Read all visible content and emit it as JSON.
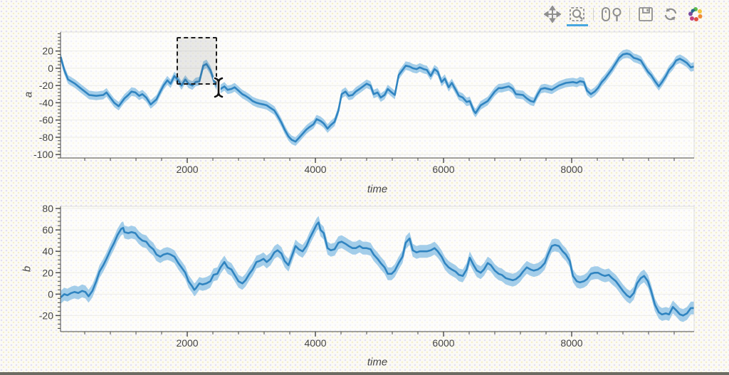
{
  "toolbar": {
    "tools": [
      {
        "name": "pan",
        "icon": "pan-move-icon",
        "active": false
      },
      {
        "name": "box-zoom",
        "icon": "box-zoom-icon",
        "active": true
      },
      {
        "name": "wheel-zoom",
        "icon": "wheel-zoom-icon",
        "active": false
      },
      {
        "name": "save",
        "icon": "save-icon",
        "active": false
      },
      {
        "name": "reset",
        "icon": "reset-icon",
        "active": false
      },
      {
        "name": "bokeh-logo",
        "icon": "bokeh-logo-icon",
        "active": false
      }
    ],
    "active_underline_color": "#47a7e0",
    "icon_color": "#8e8e8e"
  },
  "chart_data": [
    {
      "type": "line",
      "title": "",
      "xlabel": "time",
      "ylabel": "a",
      "x_ticks": [
        2000,
        4000,
        6000,
        8000
      ],
      "y_ticks": [
        20,
        0,
        -20,
        -40,
        -60,
        -80,
        -100
      ],
      "x_minor_step": 400,
      "y_minor_step": 4,
      "xlim": [
        22,
        9911
      ],
      "ylim": [
        -104,
        42
      ],
      "grid": false,
      "legend": "none",
      "line_color": "#3084c0",
      "band_color": "#a3cde9",
      "band_halfwidth": 5,
      "selection_box": {
        "t_start": 1833,
        "t_end": 2467,
        "v_start": -19,
        "v_end": 36
      },
      "points": [
        [
          25,
          13
        ],
        [
          80,
          -2
        ],
        [
          140,
          -13
        ],
        [
          250,
          -18
        ],
        [
          350,
          -24
        ],
        [
          470,
          -31
        ],
        [
          580,
          -32
        ],
        [
          690,
          -31
        ],
        [
          740,
          -28
        ],
        [
          800,
          -34
        ],
        [
          860,
          -40
        ],
        [
          930,
          -44
        ],
        [
          1020,
          -35
        ],
        [
          1080,
          -31
        ],
        [
          1130,
          -27
        ],
        [
          1190,
          -28
        ],
        [
          1250,
          -32
        ],
        [
          1300,
          -30
        ],
        [
          1360,
          -34
        ],
        [
          1430,
          -42
        ],
        [
          1520,
          -36
        ],
        [
          1580,
          -27
        ],
        [
          1630,
          -20
        ],
        [
          1690,
          -14
        ],
        [
          1740,
          -18
        ],
        [
          1800,
          -9
        ],
        [
          1860,
          -14
        ],
        [
          1910,
          -20
        ],
        [
          1970,
          -13
        ],
        [
          2020,
          -18
        ],
        [
          2080,
          -20
        ],
        [
          2130,
          -16
        ],
        [
          2190,
          -15
        ],
        [
          2250,
          3
        ],
        [
          2300,
          5
        ],
        [
          2360,
          -2
        ],
        [
          2420,
          -15
        ],
        [
          2470,
          -22
        ],
        [
          2520,
          -24
        ],
        [
          2580,
          -21
        ],
        [
          2630,
          -25
        ],
        [
          2690,
          -24
        ],
        [
          2740,
          -22
        ],
        [
          2800,
          -26
        ],
        [
          2860,
          -30
        ],
        [
          2910,
          -32
        ],
        [
          2970,
          -35
        ],
        [
          3020,
          -38
        ],
        [
          3080,
          -40
        ],
        [
          3130,
          -41
        ],
        [
          3190,
          -42
        ],
        [
          3240,
          -43
        ],
        [
          3300,
          -46
        ],
        [
          3360,
          -49
        ],
        [
          3410,
          -55
        ],
        [
          3470,
          -63
        ],
        [
          3520,
          -71
        ],
        [
          3580,
          -79
        ],
        [
          3630,
          -83
        ],
        [
          3690,
          -85
        ],
        [
          3740,
          -81
        ],
        [
          3800,
          -76
        ],
        [
          3860,
          -71
        ],
        [
          3910,
          -68
        ],
        [
          3970,
          -65
        ],
        [
          4020,
          -59
        ],
        [
          4080,
          -61
        ],
        [
          4130,
          -64
        ],
        [
          4190,
          -70
        ],
        [
          4240,
          -66
        ],
        [
          4300,
          -62
        ],
        [
          4360,
          -49
        ],
        [
          4410,
          -30
        ],
        [
          4470,
          -27
        ],
        [
          4520,
          -32
        ],
        [
          4580,
          -31
        ],
        [
          4630,
          -27
        ],
        [
          4690,
          -24
        ],
        [
          4800,
          -18
        ],
        [
          4860,
          -20
        ],
        [
          4910,
          -30
        ],
        [
          4970,
          -28
        ],
        [
          5020,
          -34
        ],
        [
          5080,
          -31
        ],
        [
          5130,
          -24
        ],
        [
          5190,
          -28
        ],
        [
          5240,
          -31
        ],
        [
          5300,
          -8
        ],
        [
          5360,
          -2
        ],
        [
          5410,
          3
        ],
        [
          5470,
          2
        ],
        [
          5520,
          0
        ],
        [
          5580,
          -1
        ],
        [
          5630,
          1
        ],
        [
          5690,
          -1
        ],
        [
          5740,
          -2
        ],
        [
          5800,
          -9
        ],
        [
          5860,
          -1
        ],
        [
          5910,
          -4
        ],
        [
          5970,
          -16
        ],
        [
          6020,
          -12
        ],
        [
          6080,
          -22
        ],
        [
          6130,
          -17
        ],
        [
          6190,
          -25
        ],
        [
          6240,
          -32
        ],
        [
          6300,
          -34
        ],
        [
          6360,
          -39
        ],
        [
          6410,
          -38
        ],
        [
          6470,
          -49
        ],
        [
          6500,
          -52
        ],
        [
          6580,
          -43
        ],
        [
          6690,
          -38
        ],
        [
          6800,
          -27
        ],
        [
          6860,
          -23
        ],
        [
          6910,
          -23
        ],
        [
          7020,
          -21
        ],
        [
          7080,
          -24
        ],
        [
          7130,
          -30
        ],
        [
          7240,
          -31
        ],
        [
          7300,
          -35
        ],
        [
          7360,
          -38
        ],
        [
          7410,
          -39
        ],
        [
          7470,
          -30
        ],
        [
          7520,
          -24
        ],
        [
          7580,
          -23
        ],
        [
          7690,
          -25
        ],
        [
          7800,
          -20
        ],
        [
          7910,
          -17
        ],
        [
          8020,
          -16
        ],
        [
          8080,
          -17
        ],
        [
          8130,
          -15
        ],
        [
          8190,
          -16
        ],
        [
          8240,
          -26
        ],
        [
          8300,
          -30
        ],
        [
          8360,
          -27
        ],
        [
          8410,
          -23
        ],
        [
          8470,
          -16
        ],
        [
          8520,
          -12
        ],
        [
          8580,
          -6
        ],
        [
          8630,
          -1
        ],
        [
          8690,
          6
        ],
        [
          8740,
          12
        ],
        [
          8800,
          16
        ],
        [
          8860,
          17
        ],
        [
          8910,
          16
        ],
        [
          8970,
          12
        ],
        [
          9020,
          11
        ],
        [
          9080,
          9
        ],
        [
          9130,
          3
        ],
        [
          9190,
          -4
        ],
        [
          9240,
          -8
        ],
        [
          9300,
          -15
        ],
        [
          9360,
          -21
        ],
        [
          9410,
          -16
        ],
        [
          9470,
          -9
        ],
        [
          9520,
          -2
        ],
        [
          9580,
          3
        ],
        [
          9630,
          9
        ],
        [
          9690,
          11
        ],
        [
          9740,
          9
        ],
        [
          9800,
          6
        ],
        [
          9860,
          1
        ],
        [
          9908,
          2
        ]
      ]
    },
    {
      "type": "line",
      "title": "",
      "xlabel": "time",
      "ylabel": "b",
      "x_ticks": [
        2000,
        4000,
        6000,
        8000
      ],
      "y_ticks": [
        80,
        60,
        40,
        20,
        0,
        -20
      ],
      "x_minor_step": 400,
      "y_minor_step": 4,
      "xlim": [
        22,
        9911
      ],
      "ylim": [
        -35,
        82
      ],
      "grid": false,
      "legend": "none",
      "line_color": "#3084c0",
      "band_color": "#a3cde9",
      "band_halfwidth": 6,
      "points": [
        [
          25,
          -3
        ],
        [
          80,
          0
        ],
        [
          130,
          -1
        ],
        [
          190,
          1
        ],
        [
          240,
          2
        ],
        [
          300,
          1
        ],
        [
          360,
          3
        ],
        [
          410,
          2
        ],
        [
          460,
          -2
        ],
        [
          520,
          3
        ],
        [
          580,
          12
        ],
        [
          630,
          21
        ],
        [
          690,
          27
        ],
        [
          740,
          33
        ],
        [
          800,
          41
        ],
        [
          860,
          48
        ],
        [
          910,
          55
        ],
        [
          970,
          61
        ],
        [
          1000,
          62
        ],
        [
          1020,
          58
        ],
        [
          1080,
          57
        ],
        [
          1130,
          58
        ],
        [
          1190,
          57
        ],
        [
          1240,
          53
        ],
        [
          1300,
          50
        ],
        [
          1360,
          49
        ],
        [
          1410,
          45
        ],
        [
          1470,
          42
        ],
        [
          1520,
          37
        ],
        [
          1580,
          35
        ],
        [
          1630,
          37
        ],
        [
          1690,
          38
        ],
        [
          1740,
          37
        ],
        [
          1800,
          35
        ],
        [
          1860,
          29
        ],
        [
          1910,
          25
        ],
        [
          1970,
          20
        ],
        [
          2020,
          12
        ],
        [
          2080,
          7
        ],
        [
          2110,
          4
        ],
        [
          2130,
          5
        ],
        [
          2190,
          10
        ],
        [
          2240,
          9
        ],
        [
          2300,
          10
        ],
        [
          2360,
          12
        ],
        [
          2410,
          18
        ],
        [
          2470,
          19
        ],
        [
          2520,
          25
        ],
        [
          2580,
          30
        ],
        [
          2630,
          25
        ],
        [
          2690,
          23
        ],
        [
          2740,
          18
        ],
        [
          2800,
          12
        ],
        [
          2860,
          10
        ],
        [
          2910,
          13
        ],
        [
          2970,
          19
        ],
        [
          3020,
          23
        ],
        [
          3080,
          30
        ],
        [
          3130,
          31
        ],
        [
          3190,
          33
        ],
        [
          3240,
          30
        ],
        [
          3300,
          33
        ],
        [
          3360,
          39
        ],
        [
          3410,
          41
        ],
        [
          3470,
          38
        ],
        [
          3520,
          31
        ],
        [
          3580,
          27
        ],
        [
          3630,
          35
        ],
        [
          3690,
          45
        ],
        [
          3740,
          42
        ],
        [
          3800,
          40
        ],
        [
          3860,
          45
        ],
        [
          3910,
          52
        ],
        [
          3970,
          59
        ],
        [
          4020,
          65
        ],
        [
          4050,
          67
        ],
        [
          4080,
          60
        ],
        [
          4130,
          57
        ],
        [
          4190,
          43
        ],
        [
          4240,
          41
        ],
        [
          4300,
          42
        ],
        [
          4360,
          48
        ],
        [
          4410,
          49
        ],
        [
          4470,
          47
        ],
        [
          4520,
          45
        ],
        [
          4580,
          43
        ],
        [
          4630,
          43
        ],
        [
          4690,
          45
        ],
        [
          4740,
          43
        ],
        [
          4800,
          43
        ],
        [
          4860,
          42
        ],
        [
          4910,
          37
        ],
        [
          4970,
          33
        ],
        [
          5020,
          29
        ],
        [
          5080,
          25
        ],
        [
          5130,
          19
        ],
        [
          5190,
          19
        ],
        [
          5240,
          22
        ],
        [
          5300,
          29
        ],
        [
          5360,
          35
        ],
        [
          5410,
          48
        ],
        [
          5470,
          52
        ],
        [
          5520,
          41
        ],
        [
          5580,
          39
        ],
        [
          5630,
          40
        ],
        [
          5690,
          40
        ],
        [
          5740,
          40
        ],
        [
          5800,
          41
        ],
        [
          5860,
          43
        ],
        [
          5910,
          40
        ],
        [
          5970,
          35
        ],
        [
          6020,
          29
        ],
        [
          6080,
          25
        ],
        [
          6130,
          23
        ],
        [
          6190,
          21
        ],
        [
          6240,
          18
        ],
        [
          6300,
          17
        ],
        [
          6360,
          23
        ],
        [
          6410,
          34
        ],
        [
          6470,
          27
        ],
        [
          6520,
          22
        ],
        [
          6580,
          20
        ],
        [
          6630,
          23
        ],
        [
          6690,
          29
        ],
        [
          6740,
          27
        ],
        [
          6800,
          22
        ],
        [
          6860,
          19
        ],
        [
          6910,
          18
        ],
        [
          6970,
          15
        ],
        [
          7020,
          14
        ],
        [
          7080,
          13
        ],
        [
          7130,
          14
        ],
        [
          7190,
          17
        ],
        [
          7240,
          21
        ],
        [
          7300,
          25
        ],
        [
          7360,
          23
        ],
        [
          7410,
          22
        ],
        [
          7470,
          23
        ],
        [
          7520,
          25
        ],
        [
          7580,
          29
        ],
        [
          7630,
          37
        ],
        [
          7690,
          45
        ],
        [
          7740,
          46
        ],
        [
          7800,
          45
        ],
        [
          7860,
          40
        ],
        [
          7910,
          37
        ],
        [
          7970,
          31
        ],
        [
          8020,
          17
        ],
        [
          8080,
          12
        ],
        [
          8130,
          11
        ],
        [
          8190,
          12
        ],
        [
          8240,
          14
        ],
        [
          8300,
          19
        ],
        [
          8360,
          20
        ],
        [
          8410,
          20
        ],
        [
          8470,
          18
        ],
        [
          8520,
          17
        ],
        [
          8580,
          18
        ],
        [
          8630,
          15
        ],
        [
          8690,
          12
        ],
        [
          8740,
          8
        ],
        [
          8800,
          3
        ],
        [
          8860,
          -1
        ],
        [
          8910,
          -3
        ],
        [
          8970,
          1
        ],
        [
          9020,
          10
        ],
        [
          9080,
          15
        ],
        [
          9130,
          17
        ],
        [
          9190,
          12
        ],
        [
          9240,
          3
        ],
        [
          9300,
          -10
        ],
        [
          9360,
          -17
        ],
        [
          9410,
          -19
        ],
        [
          9470,
          -18
        ],
        [
          9520,
          -19
        ],
        [
          9580,
          -12
        ],
        [
          9630,
          -15
        ],
        [
          9690,
          -19
        ],
        [
          9740,
          -20
        ],
        [
          9800,
          -18
        ],
        [
          9860,
          -13
        ],
        [
          9908,
          -13
        ]
      ]
    }
  ]
}
